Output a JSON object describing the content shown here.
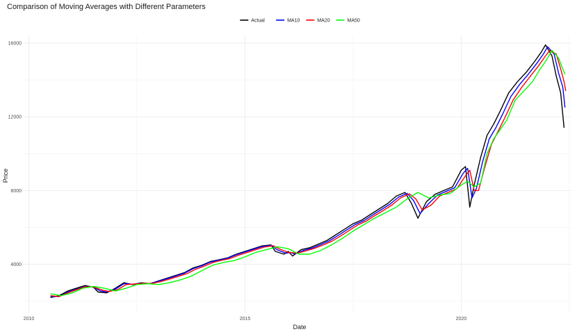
{
  "chart_data": {
    "type": "line",
    "title": "Comparison of Moving Averages with Different Parameters",
    "xlabel": "Date",
    "ylabel": "Price",
    "x_ticks": [
      {
        "value": 2010,
        "label": "2010"
      },
      {
        "value": 2015,
        "label": "2015"
      },
      {
        "value": 2020,
        "label": "2020"
      }
    ],
    "y_ticks": [
      {
        "value": 4000,
        "label": "4000"
      },
      {
        "value": 8000,
        "label": "8000"
      },
      {
        "value": 12000,
        "label": "12000"
      },
      {
        "value": 16000,
        "label": "16000"
      }
    ],
    "xlim": [
      2009.88,
      2022.55
    ],
    "ylim": [
      1350,
      16450
    ],
    "grid": true,
    "legend_position": "top",
    "x_unit": "year",
    "series": [
      {
        "name": "Actual",
        "color": "#000000",
        "x": [
          2010.5,
          2010.7,
          2010.9,
          2011.1,
          2011.3,
          2011.5,
          2011.6,
          2011.8,
          2012.0,
          2012.2,
          2012.4,
          2012.6,
          2012.8,
          2013.0,
          2013.2,
          2013.4,
          2013.6,
          2013.8,
          2014.0,
          2014.2,
          2014.4,
          2014.6,
          2014.8,
          2015.0,
          2015.2,
          2015.4,
          2015.6,
          2015.7,
          2015.9,
          2016.0,
          2016.1,
          2016.3,
          2016.5,
          2016.7,
          2016.9,
          2017.1,
          2017.3,
          2017.5,
          2017.7,
          2017.9,
          2018.1,
          2018.3,
          2018.5,
          2018.7,
          2018.85,
          2019.0,
          2019.2,
          2019.4,
          2019.6,
          2019.8,
          2020.0,
          2020.1,
          2020.2,
          2020.3,
          2020.45,
          2020.6,
          2020.75,
          2020.9,
          2021.1,
          2021.3,
          2021.5,
          2021.7,
          2021.85,
          2021.95,
          2022.1,
          2022.2,
          2022.3,
          2022.38
        ],
        "values": [
          2200,
          2300,
          2550,
          2700,
          2850,
          2750,
          2500,
          2450,
          2700,
          3000,
          2900,
          3000,
          2950,
          3100,
          3250,
          3400,
          3550,
          3800,
          3950,
          4150,
          4250,
          4350,
          4550,
          4700,
          4850,
          5000,
          5050,
          4700,
          4550,
          4700,
          4450,
          4800,
          4900,
          5100,
          5300,
          5600,
          5900,
          6200,
          6400,
          6700,
          7000,
          7300,
          7700,
          7900,
          7300,
          6500,
          7400,
          7800,
          8000,
          8200,
          9100,
          9300,
          7100,
          8300,
          9800,
          11000,
          11600,
          12300,
          13300,
          13900,
          14400,
          15000,
          15500,
          15900,
          15300,
          14200,
          13300,
          11400
        ]
      },
      {
        "name": "MA10",
        "color": "#0000ff",
        "x": [
          2010.5,
          2010.7,
          2010.9,
          2011.1,
          2011.3,
          2011.5,
          2011.65,
          2011.8,
          2012.0,
          2012.2,
          2012.4,
          2012.6,
          2012.8,
          2013.0,
          2013.2,
          2013.4,
          2013.6,
          2013.8,
          2014.0,
          2014.2,
          2014.4,
          2014.6,
          2014.8,
          2015.0,
          2015.2,
          2015.4,
          2015.6,
          2015.75,
          2015.95,
          2016.05,
          2016.15,
          2016.35,
          2016.55,
          2016.75,
          2016.95,
          2017.15,
          2017.35,
          2017.55,
          2017.75,
          2017.95,
          2018.15,
          2018.35,
          2018.55,
          2018.75,
          2018.9,
          2019.05,
          2019.25,
          2019.45,
          2019.65,
          2019.85,
          2020.05,
          2020.15,
          2020.25,
          2020.35,
          2020.5,
          2020.65,
          2020.8,
          2020.95,
          2021.15,
          2021.35,
          2021.55,
          2021.75,
          2021.9,
          2022.0,
          2022.15,
          2022.25,
          2022.35,
          2022.4
        ],
        "values": [
          2250,
          2250,
          2500,
          2650,
          2800,
          2760,
          2560,
          2500,
          2650,
          2950,
          2920,
          2980,
          2950,
          3080,
          3220,
          3370,
          3520,
          3760,
          3920,
          4120,
          4230,
          4330,
          4520,
          4670,
          4820,
          4970,
          5030,
          4780,
          4600,
          4650,
          4550,
          4750,
          4880,
          5070,
          5270,
          5560,
          5860,
          6160,
          6370,
          6670,
          6960,
          7260,
          7640,
          7850,
          7450,
          6750,
          7300,
          7750,
          7950,
          8150,
          8950,
          9200,
          7600,
          8100,
          9600,
          10800,
          11400,
          12100,
          13100,
          13750,
          14300,
          14900,
          15400,
          15800,
          15400,
          14400,
          13600,
          12500
        ]
      },
      {
        "name": "MA20",
        "color": "#ff0000",
        "x": [
          2010.5,
          2010.7,
          2010.9,
          2011.1,
          2011.3,
          2011.5,
          2011.7,
          2011.85,
          2012.05,
          2012.25,
          2012.45,
          2012.65,
          2012.85,
          2013.05,
          2013.25,
          2013.45,
          2013.65,
          2013.85,
          2014.05,
          2014.25,
          2014.45,
          2014.65,
          2014.85,
          2015.05,
          2015.25,
          2015.45,
          2015.65,
          2015.8,
          2016.0,
          2016.1,
          2016.2,
          2016.4,
          2016.6,
          2016.8,
          2017.0,
          2017.2,
          2017.4,
          2017.6,
          2017.8,
          2018.0,
          2018.2,
          2018.4,
          2018.6,
          2018.8,
          2018.95,
          2019.1,
          2019.3,
          2019.5,
          2019.7,
          2019.9,
          2020.1,
          2020.2,
          2020.3,
          2020.4,
          2020.55,
          2020.7,
          2020.85,
          2021.0,
          2021.2,
          2021.4,
          2021.6,
          2021.8,
          2021.95,
          2022.05,
          2022.2,
          2022.3,
          2022.38,
          2022.42
        ],
        "values": [
          2300,
          2250,
          2450,
          2620,
          2780,
          2770,
          2600,
          2530,
          2620,
          2900,
          2930,
          2970,
          2960,
          3060,
          3200,
          3340,
          3490,
          3720,
          3890,
          4090,
          4210,
          4310,
          4490,
          4640,
          4790,
          4940,
          5010,
          4830,
          4650,
          4630,
          4600,
          4720,
          4860,
          5040,
          5240,
          5520,
          5820,
          6120,
          6340,
          6640,
          6920,
          7220,
          7600,
          7820,
          7550,
          6950,
          7200,
          7700,
          7900,
          8100,
          8800,
          9100,
          8000,
          8000,
          9300,
          10500,
          11200,
          11900,
          12900,
          13600,
          14200,
          14800,
          15300,
          15600,
          15400,
          14600,
          13900,
          13400
        ]
      },
      {
        "name": "MA50",
        "color": "#00ff00",
        "x": [
          2010.5,
          2010.75,
          2011.0,
          2011.25,
          2011.5,
          2011.75,
          2012.0,
          2012.25,
          2012.5,
          2012.75,
          2013.0,
          2013.25,
          2013.5,
          2013.75,
          2014.0,
          2014.25,
          2014.5,
          2014.75,
          2015.0,
          2015.25,
          2015.5,
          2015.75,
          2016.0,
          2016.25,
          2016.5,
          2016.75,
          2017.0,
          2017.25,
          2017.5,
          2017.75,
          2018.0,
          2018.25,
          2018.5,
          2018.75,
          2019.0,
          2019.25,
          2019.5,
          2019.75,
          2020.0,
          2020.15,
          2020.3,
          2020.45,
          2020.6,
          2020.75,
          2020.9,
          2021.05,
          2021.25,
          2021.45,
          2021.65,
          2021.8,
          2021.95,
          2022.1,
          2022.25,
          2022.4
        ],
        "values": [
          2400,
          2300,
          2450,
          2700,
          2800,
          2700,
          2550,
          2700,
          2900,
          2950,
          2900,
          3000,
          3150,
          3350,
          3650,
          3950,
          4100,
          4200,
          4400,
          4650,
          4800,
          4950,
          4850,
          4550,
          4550,
          4750,
          5050,
          5400,
          5800,
          6150,
          6500,
          6800,
          7100,
          7550,
          7900,
          7600,
          7750,
          7850,
          8300,
          8500,
          8200,
          8400,
          10000,
          10800,
          11300,
          11800,
          12900,
          13400,
          13900,
          14500,
          15000,
          15600,
          15200,
          14300
        ]
      }
    ]
  }
}
